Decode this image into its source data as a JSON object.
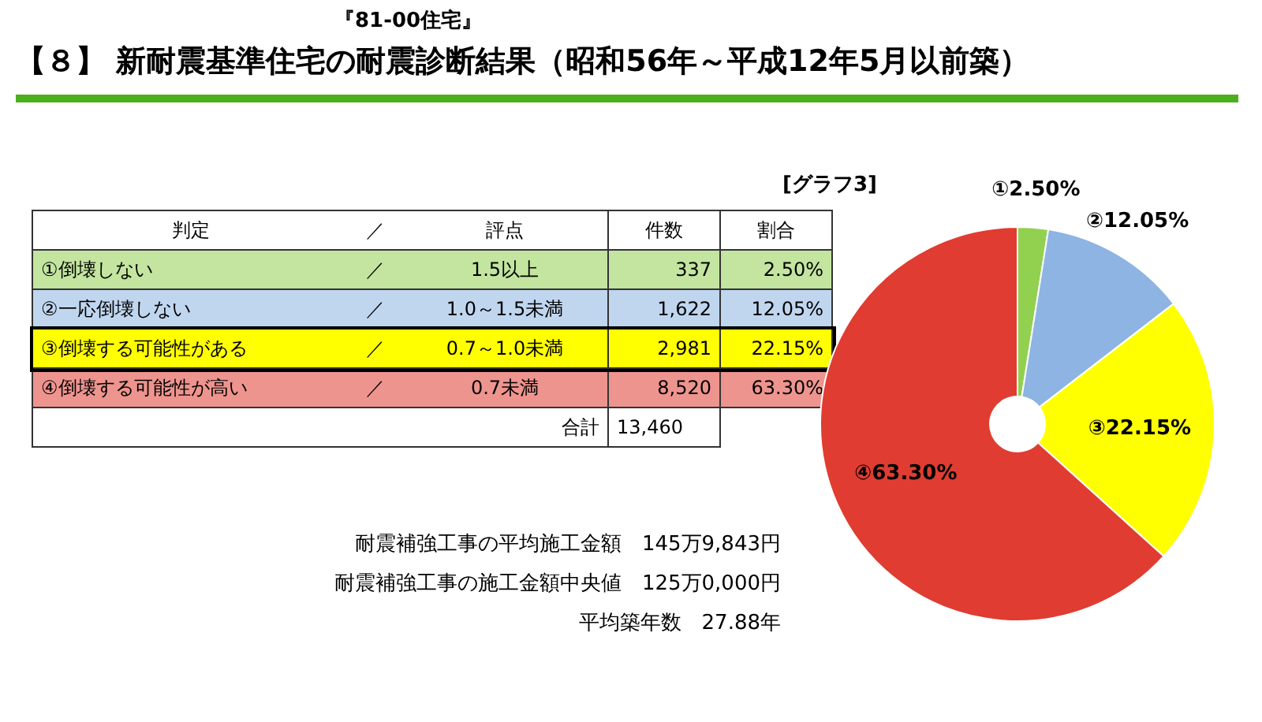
{
  "chart_data": {
    "type": "donut",
    "title": "【８】 新耐震基準住宅の耐震診断結果（昭和56年～平成12年5月以前築）",
    "subtitle": "『81-00住宅』",
    "categories": [
      "①",
      "②",
      "③",
      "④"
    ],
    "values": [
      2.5,
      12.05,
      22.15,
      63.3
    ],
    "colors": [
      "#92d050",
      "#8db4e2",
      "#ffff00",
      "#e03c31"
    ],
    "value_labels": [
      "2.50%",
      "12.05%",
      "22.15%",
      "63.30%"
    ],
    "legend": false,
    "annotations": [
      "[グラフ3]",
      "判定",
      "／",
      "評点",
      "件数",
      "割合",
      "①倒壊しない",
      "／",
      "1.5以上",
      "337",
      "2.50%",
      "②一応倒壊しない",
      "／",
      "1.0～1.5未満",
      "1,622",
      "12.05%",
      "③倒壊する可能性がある",
      "／",
      "0.7～1.0未満",
      "2,981",
      "22.15%",
      "④倒壊する可能性が高い",
      "／",
      "0.7未満",
      "8,520",
      "63.30%",
      "合計",
      "13,460",
      "耐震補強工事の平均施工金額　145万9,843円",
      "耐震補強工事の施工金額中央値　125万0,000円",
      "平均築年数　27.88年"
    ]
  }
}
